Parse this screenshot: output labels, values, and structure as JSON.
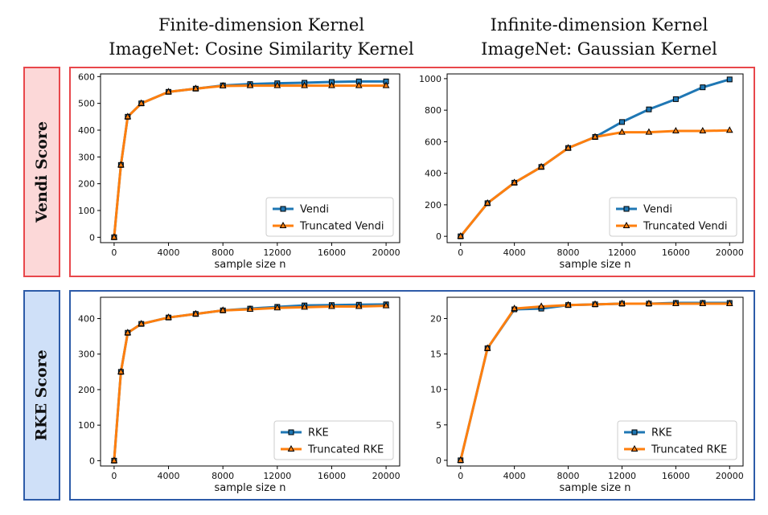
{
  "figure": {
    "col_titles": [
      [
        "Finite-dimension Kernel",
        "ImageNet: Cosine Similarity Kernel"
      ],
      [
        "Infinite-dimension Kernel",
        "ImageNet: Gaussian Kernel"
      ]
    ],
    "row_labels": [
      "Vendi Score",
      "RKE Score"
    ],
    "colors": {
      "vendi_row": "#e8474b",
      "vendi_fill": "#fcd8d8",
      "rke_row": "#2d5ba8",
      "rke_fill": "#cfe0f8",
      "series_primary": "#1f77b4",
      "series_truncated": "#ff7f0e"
    }
  },
  "chart_data": [
    {
      "type": "line",
      "xlabel": "sample size n",
      "xlim": [
        -1000,
        21000
      ],
      "ylim": [
        -20,
        610
      ],
      "xticks": [
        0,
        4000,
        8000,
        12000,
        16000,
        20000
      ],
      "yticks": [
        0,
        100,
        200,
        300,
        400,
        500,
        600
      ],
      "legend": "bottom-right",
      "series": [
        {
          "name": "Vendi",
          "marker": "square",
          "color": "#1f77b4",
          "x": [
            0,
            500,
            1000,
            2000,
            4000,
            6000,
            8000,
            10000,
            12000,
            14000,
            16000,
            18000,
            20000
          ],
          "y": [
            0,
            270,
            450,
            500,
            543,
            555,
            567,
            572,
            575,
            577,
            580,
            582,
            582
          ]
        },
        {
          "name": "Truncated Vendi",
          "marker": "triangle",
          "color": "#ff7f0e",
          "x": [
            0,
            500,
            1000,
            2000,
            4000,
            6000,
            8000,
            10000,
            12000,
            14000,
            16000,
            18000,
            20000
          ],
          "y": [
            0,
            270,
            450,
            500,
            543,
            555,
            565,
            566,
            566,
            566,
            566,
            566,
            566
          ]
        }
      ]
    },
    {
      "type": "line",
      "xlabel": "sample size n",
      "xlim": [
        -1000,
        21000
      ],
      "ylim": [
        -40,
        1030
      ],
      "xticks": [
        0,
        4000,
        8000,
        12000,
        16000,
        20000
      ],
      "yticks": [
        0,
        200,
        400,
        600,
        800,
        1000
      ],
      "legend": "bottom-right",
      "series": [
        {
          "name": "Vendi",
          "marker": "square",
          "color": "#1f77b4",
          "x": [
            0,
            2000,
            4000,
            6000,
            8000,
            10000,
            12000,
            14000,
            16000,
            18000,
            20000
          ],
          "y": [
            0,
            210,
            340,
            440,
            560,
            630,
            725,
            805,
            870,
            945,
            995
          ]
        },
        {
          "name": "Truncated Vendi",
          "marker": "triangle",
          "color": "#ff7f0e",
          "x": [
            0,
            2000,
            4000,
            6000,
            8000,
            10000,
            12000,
            14000,
            16000,
            18000,
            20000
          ],
          "y": [
            0,
            210,
            340,
            440,
            560,
            630,
            660,
            660,
            668,
            668,
            672
          ]
        }
      ]
    },
    {
      "type": "line",
      "xlabel": "sample size n",
      "xlim": [
        -1000,
        21000
      ],
      "ylim": [
        -15,
        460
      ],
      "xticks": [
        0,
        4000,
        8000,
        12000,
        16000,
        20000
      ],
      "yticks": [
        0,
        100,
        200,
        300,
        400
      ],
      "legend": "bottom-right",
      "series": [
        {
          "name": "RKE",
          "marker": "square",
          "color": "#1f77b4",
          "x": [
            0,
            500,
            1000,
            2000,
            4000,
            6000,
            8000,
            10000,
            12000,
            14000,
            16000,
            18000,
            20000
          ],
          "y": [
            0,
            250,
            360,
            385,
            403,
            413,
            423,
            428,
            433,
            437,
            438,
            439,
            440
          ]
        },
        {
          "name": "Truncated RKE",
          "marker": "triangle",
          "color": "#ff7f0e",
          "x": [
            0,
            500,
            1000,
            2000,
            4000,
            6000,
            8000,
            10000,
            12000,
            14000,
            16000,
            18000,
            20000
          ],
          "y": [
            0,
            250,
            360,
            385,
            403,
            413,
            423,
            426,
            430,
            432,
            434,
            434,
            436
          ]
        }
      ]
    },
    {
      "type": "line",
      "xlabel": "sample size n",
      "xlim": [
        -1000,
        21000
      ],
      "ylim": [
        -0.8,
        23.0
      ],
      "xticks": [
        0,
        4000,
        8000,
        12000,
        16000,
        20000
      ],
      "yticks": [
        0,
        5,
        10,
        15,
        20
      ],
      "legend": "bottom-right",
      "series": [
        {
          "name": "RKE",
          "marker": "square",
          "color": "#1f77b4",
          "x": [
            0,
            2000,
            4000,
            6000,
            8000,
            10000,
            12000,
            14000,
            16000,
            18000,
            20000
          ],
          "y": [
            0,
            15.8,
            21.3,
            21.4,
            21.9,
            22.0,
            22.1,
            22.1,
            22.2,
            22.2,
            22.2
          ]
        },
        {
          "name": "Truncated RKE",
          "marker": "triangle",
          "color": "#ff7f0e",
          "x": [
            0,
            2000,
            4000,
            6000,
            8000,
            10000,
            12000,
            14000,
            16000,
            18000,
            20000
          ],
          "y": [
            0,
            15.8,
            21.4,
            21.7,
            21.9,
            22.0,
            22.1,
            22.1,
            22.1,
            22.1,
            22.1
          ]
        }
      ]
    }
  ]
}
